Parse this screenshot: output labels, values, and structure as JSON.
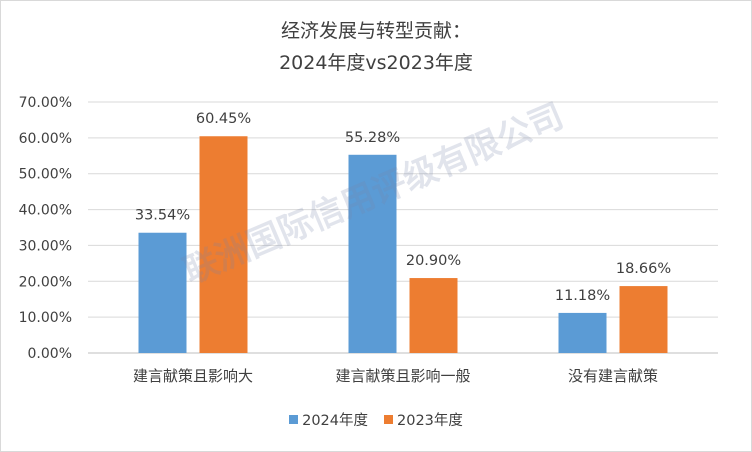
{
  "chart_data": {
    "type": "bar",
    "title": "经济发展与转型贡献：",
    "subtitle": "2024年度vs2023年度",
    "categories": [
      "建言献策且影响大",
      "建言献策且影响一般",
      "没有建言献策"
    ],
    "series": [
      {
        "name": "2024年度",
        "values": [
          33.54,
          55.28,
          11.18
        ],
        "color": "#5b9bd5",
        "labels": [
          "33.54%",
          "55.28%",
          "11.18%"
        ]
      },
      {
        "name": "2023年度",
        "values": [
          60.45,
          20.9,
          18.66
        ],
        "color": "#ed7d31",
        "labels": [
          "60.45%",
          "20.90%",
          "18.66%"
        ]
      }
    ],
    "ylim": [
      0,
      70
    ],
    "yticks": [
      "0.00%",
      "10.00%",
      "20.00%",
      "30.00%",
      "40.00%",
      "50.00%",
      "60.00%",
      "70.00%"
    ],
    "grid": true,
    "legend": "bottom"
  },
  "watermark": "联洲国际信用评级有限公司"
}
